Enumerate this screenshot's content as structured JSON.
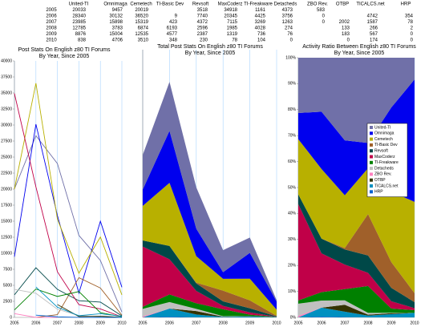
{
  "table": {
    "header": [
      "United-TI",
      "Omnimaga",
      "Cemetech",
      "TI-Basic Dev",
      "Revsoft",
      "MaxCoderz",
      "TI-Freakware",
      "Detacheds",
      "ZBO Rev.",
      "OTBP",
      "TICALCS.net",
      "HRP"
    ],
    "rows": [
      {
        "year": "2005",
        "cells": [
          20033,
          9457,
          20019,
          null,
          3518,
          34918,
          1161,
          4373,
          583,
          null,
          null,
          null
        ]
      },
      {
        "year": "2006",
        "cells": [
          28340,
          30132,
          36520,
          9,
          7740,
          20345,
          4425,
          3756,
          0,
          null,
          4742,
          354
        ]
      },
      {
        "year": "2007",
        "cells": [
          23985,
          15898,
          15319,
          423,
          4372,
          7115,
          3269,
          1263,
          0,
          2002,
          1587,
          78
        ]
      },
      {
        "year": "2008",
        "cells": [
          12785,
          3783,
          6874,
          6193,
          2596,
          1985,
          4028,
          274,
          null,
          133,
          266,
          2
        ]
      },
      {
        "year": "2009",
        "cells": [
          8876,
          15004,
          12535,
          4577,
          2387,
          1319,
          736,
          76,
          null,
          183,
          567,
          0
        ]
      },
      {
        "year": "2010",
        "cells": [
          838,
          4706,
          3510,
          348,
          230,
          78,
          104,
          0,
          null,
          0,
          174,
          0
        ]
      }
    ]
  },
  "chart_data": [
    {
      "type": "line",
      "title": "Post Stats On English z80 TI Forums",
      "subtitle": "By Year, Since 2005",
      "categories": [
        "2005",
        "2006",
        "2007",
        "2008",
        "2009",
        "2010"
      ],
      "ylim": [
        0,
        40000
      ],
      "yticks": [
        0,
        2500,
        5000,
        7500,
        10000,
        12500,
        15000,
        17500,
        20000,
        22500,
        25000,
        27500,
        30000,
        32500,
        35000,
        37500,
        40000
      ],
      "series": [
        {
          "name": "United-TI",
          "color": "#7070a8",
          "values": [
            20033,
            28340,
            23985,
            12785,
            8876,
            838
          ]
        },
        {
          "name": "Omnimaga",
          "color": "#0000ee",
          "values": [
            9457,
            30132,
            15898,
            3783,
            15004,
            4706
          ]
        },
        {
          "name": "Cemetech",
          "color": "#b8b000",
          "values": [
            20019,
            36520,
            15319,
            6874,
            12535,
            3510
          ]
        },
        {
          "name": "TI-Basic Dev",
          "color": "#a0602a",
          "values": [
            null,
            9,
            423,
            6193,
            4577,
            348
          ]
        },
        {
          "name": "Revsoft",
          "color": "#004848",
          "values": [
            3518,
            7740,
            4372,
            2596,
            2387,
            230
          ]
        },
        {
          "name": "MaxCoderz",
          "color": "#c00048",
          "values": [
            34918,
            20345,
            7115,
            1985,
            1319,
            78
          ]
        },
        {
          "name": "TI-Freakware",
          "color": "#008000",
          "values": [
            1161,
            4425,
            3269,
            4028,
            736,
            104
          ]
        },
        {
          "name": "Detacheds",
          "color": "#c0c0c0",
          "values": [
            4373,
            3756,
            1263,
            274,
            76,
            0
          ]
        },
        {
          "name": "ZBO Rev.",
          "color": "#ff80c0",
          "values": [
            583,
            0,
            0,
            null,
            null,
            null
          ]
        },
        {
          "name": "OTBP",
          "color": "#333300",
          "values": [
            null,
            null,
            2002,
            133,
            183,
            0
          ]
        },
        {
          "name": "TICALCS.net",
          "color": "#0090c0",
          "values": [
            null,
            4742,
            1587,
            266,
            567,
            174
          ]
        },
        {
          "name": "HRP",
          "color": "#0060d0",
          "values": [
            null,
            354,
            78,
            2,
            0,
            0
          ]
        }
      ]
    },
    {
      "type": "stacked_area",
      "title": "Total Post Stats On English z80 TI Forums",
      "subtitle": "By Year, Since 2005",
      "categories": [
        "2005",
        "2006",
        "2007",
        "2008",
        "2009",
        "2010"
      ],
      "ylim": [
        0,
        155000
      ],
      "series": [
        {
          "name": "United-TI",
          "color": "#7070a8",
          "values": [
            20033,
            28340,
            23985,
            12785,
            8876,
            838
          ]
        },
        {
          "name": "Omnimaga",
          "color": "#0000ee",
          "values": [
            9457,
            30132,
            15898,
            3783,
            15004,
            4706
          ]
        },
        {
          "name": "Cemetech",
          "color": "#b8b000",
          "values": [
            20019,
            36520,
            15319,
            6874,
            12535,
            3510
          ]
        },
        {
          "name": "TI-Basic Dev",
          "color": "#a0602a",
          "values": [
            null,
            9,
            423,
            6193,
            4577,
            348
          ]
        },
        {
          "name": "Revsoft",
          "color": "#004848",
          "values": [
            3518,
            7740,
            4372,
            2596,
            2387,
            230
          ]
        },
        {
          "name": "MaxCoderz",
          "color": "#c00048",
          "values": [
            34918,
            20345,
            7115,
            1985,
            1319,
            78
          ]
        },
        {
          "name": "TI-Freakware",
          "color": "#008000",
          "values": [
            1161,
            4425,
            3269,
            4028,
            736,
            104
          ]
        },
        {
          "name": "Detacheds",
          "color": "#c0c0c0",
          "values": [
            4373,
            3756,
            1263,
            274,
            76,
            0
          ]
        },
        {
          "name": "ZBO Rev.",
          "color": "#ff80c0",
          "values": [
            583,
            0,
            0,
            null,
            null,
            null
          ]
        },
        {
          "name": "OTBP",
          "color": "#333300",
          "values": [
            null,
            null,
            2002,
            133,
            183,
            0
          ]
        },
        {
          "name": "TICALCS.net",
          "color": "#0090c0",
          "values": [
            null,
            4742,
            1587,
            266,
            567,
            174
          ]
        },
        {
          "name": "HRP",
          "color": "#0060d0",
          "values": [
            null,
            354,
            78,
            2,
            0,
            0
          ]
        }
      ]
    },
    {
      "type": "percent_area",
      "title": "Activity Ratio Between English z80 TI Forums",
      "subtitle": "By Year, Since 2005",
      "categories": [
        "2005",
        "2006",
        "2007",
        "2008",
        "2009",
        "2010"
      ],
      "ylim": [
        0,
        100
      ],
      "legend": "right",
      "yticks": [
        {
          "value": 0,
          "label": "0%"
        },
        {
          "value": 10,
          "label": "10%"
        },
        {
          "value": 20,
          "label": "20%"
        },
        {
          "value": 30,
          "label": "30%"
        },
        {
          "value": 40,
          "label": "40%"
        },
        {
          "value": 50,
          "label": "50%"
        },
        {
          "value": 60,
          "label": "60%"
        },
        {
          "value": 70,
          "label": "70%"
        },
        {
          "value": 80,
          "label": "80%"
        },
        {
          "value": 90,
          "label": "90%"
        },
        {
          "value": 100,
          "label": "100%"
        }
      ],
      "series": [
        {
          "name": "United-TI",
          "color": "#7070a8",
          "values": [
            20033,
            28340,
            23985,
            12785,
            8876,
            838
          ]
        },
        {
          "name": "Omnimaga",
          "color": "#0000ee",
          "values": [
            9457,
            30132,
            15898,
            3783,
            15004,
            4706
          ]
        },
        {
          "name": "Cemetech",
          "color": "#b8b000",
          "values": [
            20019,
            36520,
            15319,
            6874,
            12535,
            3510
          ]
        },
        {
          "name": "TI-Basic Dev",
          "color": "#a0602a",
          "values": [
            null,
            9,
            423,
            6193,
            4577,
            348
          ]
        },
        {
          "name": "Revsoft",
          "color": "#004848",
          "values": [
            3518,
            7740,
            4372,
            2596,
            2387,
            230
          ]
        },
        {
          "name": "MaxCoderz",
          "color": "#c00048",
          "values": [
            34918,
            20345,
            7115,
            1985,
            1319,
            78
          ]
        },
        {
          "name": "TI-Freakware",
          "color": "#008000",
          "values": [
            1161,
            4425,
            3269,
            4028,
            736,
            104
          ]
        },
        {
          "name": "Detacheds",
          "color": "#c0c0c0",
          "values": [
            4373,
            3756,
            1263,
            274,
            76,
            0
          ]
        },
        {
          "name": "ZBO Rev.",
          "color": "#ff80c0",
          "values": [
            583,
            0,
            0,
            null,
            null,
            null
          ]
        },
        {
          "name": "OTBP",
          "color": "#333300",
          "values": [
            null,
            null,
            2002,
            133,
            183,
            0
          ]
        },
        {
          "name": "TICALCS.net",
          "color": "#0090c0",
          "values": [
            null,
            4742,
            1587,
            266,
            567,
            174
          ]
        },
        {
          "name": "HRP",
          "color": "#0060d0",
          "values": [
            null,
            354,
            78,
            2,
            0,
            0
          ]
        }
      ]
    }
  ]
}
